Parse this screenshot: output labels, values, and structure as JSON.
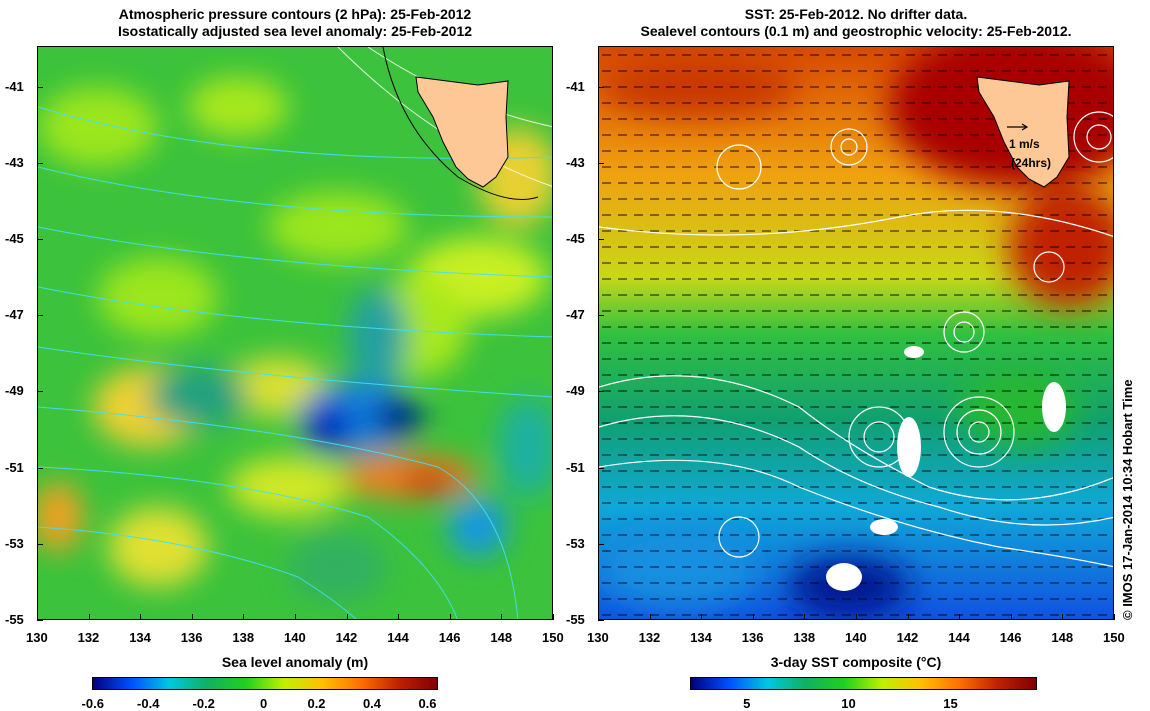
{
  "left_panel": {
    "title_line1": "Atmospheric pressure contours (2 hPa): 25-Feb-2012",
    "title_line2": "Isostatically adjusted sea level anomaly: 25-Feb-2012",
    "colorbar_label": "Sea level anomaly (m)",
    "colorbar_ticks": [
      "-0.6",
      "-0.4",
      "-0.2",
      "0",
      "0.2",
      "0.4",
      "0.6"
    ],
    "colorbar_range": [
      -0.62,
      0.62
    ],
    "colorbar_colors": [
      "#00007f",
      "#0050ff",
      "#00c8e0",
      "#10b060",
      "#20d020",
      "#c0f000",
      "#ffc000",
      "#ff7000",
      "#c02000",
      "#800000"
    ]
  },
  "right_panel": {
    "title_line1": "SST: 25-Feb-2012. No drifter data.",
    "title_line2": "Sealevel contours (0.1 m) and geostrophic velocity: 25-Feb-2012.",
    "colorbar_label": "3-day SST composite (°C)",
    "colorbar_ticks": [
      "5",
      "10",
      "15"
    ],
    "colorbar_range": [
      2.2,
      19.1
    ],
    "colorbar_colors": [
      "#00007f",
      "#0050ff",
      "#00c8e0",
      "#10b060",
      "#20d020",
      "#c0f000",
      "#ffc000",
      "#ff7000",
      "#c02000",
      "#800000"
    ],
    "velocity_scale_label": "1 m/s",
    "velocity_scale_note": "(24hrs)"
  },
  "axes": {
    "lon_ticks": [
      "130",
      "132",
      "134",
      "136",
      "138",
      "140",
      "142",
      "144",
      "146",
      "148",
      "150"
    ],
    "lat_ticks": [
      "-41",
      "-43",
      "-45",
      "-47",
      "-49",
      "-51",
      "-53",
      "-55"
    ]
  },
  "watermark": "© IMOS 17-Jan-2014 10:34 Hobart Time",
  "colors": {
    "land": "#fdc896",
    "pressure_contour": "#40e0ff",
    "sealevel_contour": "#ffffff"
  }
}
